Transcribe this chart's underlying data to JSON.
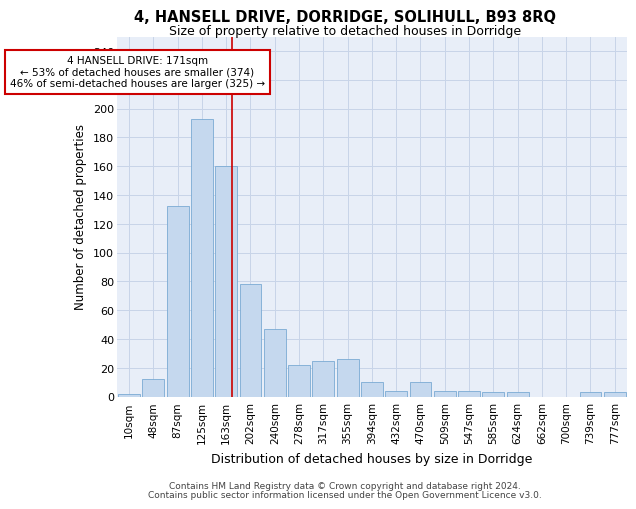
{
  "title": "4, HANSELL DRIVE, DORRIDGE, SOLIHULL, B93 8RQ",
  "subtitle": "Size of property relative to detached houses in Dorridge",
  "xlabel": "Distribution of detached houses by size in Dorridge",
  "ylabel": "Number of detached properties",
  "categories": [
    "10sqm",
    "48sqm",
    "87sqm",
    "125sqm",
    "163sqm",
    "202sqm",
    "240sqm",
    "278sqm",
    "317sqm",
    "355sqm",
    "394sqm",
    "432sqm",
    "470sqm",
    "509sqm",
    "547sqm",
    "585sqm",
    "624sqm",
    "662sqm",
    "700sqm",
    "739sqm",
    "777sqm"
  ],
  "values": [
    2,
    12,
    132,
    193,
    160,
    78,
    47,
    22,
    25,
    26,
    10,
    4,
    10,
    4,
    4,
    3,
    3,
    0,
    0,
    3,
    3
  ],
  "bar_color": "#c5d8ee",
  "bar_edgecolor": "#7aaad4",
  "highlight_line_color": "#cc0000",
  "annotation_line1": "4 HANSELL DRIVE: 171sqm",
  "annotation_line2": "← 53% of detached houses are smaller (374)",
  "annotation_line3": "46% of semi-detached houses are larger (325) →",
  "ylim": [
    0,
    250
  ],
  "yticks": [
    0,
    20,
    40,
    60,
    80,
    100,
    120,
    140,
    160,
    180,
    200,
    220,
    240
  ],
  "grid_color": "#c8d4e8",
  "background_color": "#e8eef8",
  "footer_line1": "Contains HM Land Registry data © Crown copyright and database right 2024.",
  "footer_line2": "Contains public sector information licensed under the Open Government Licence v3.0."
}
